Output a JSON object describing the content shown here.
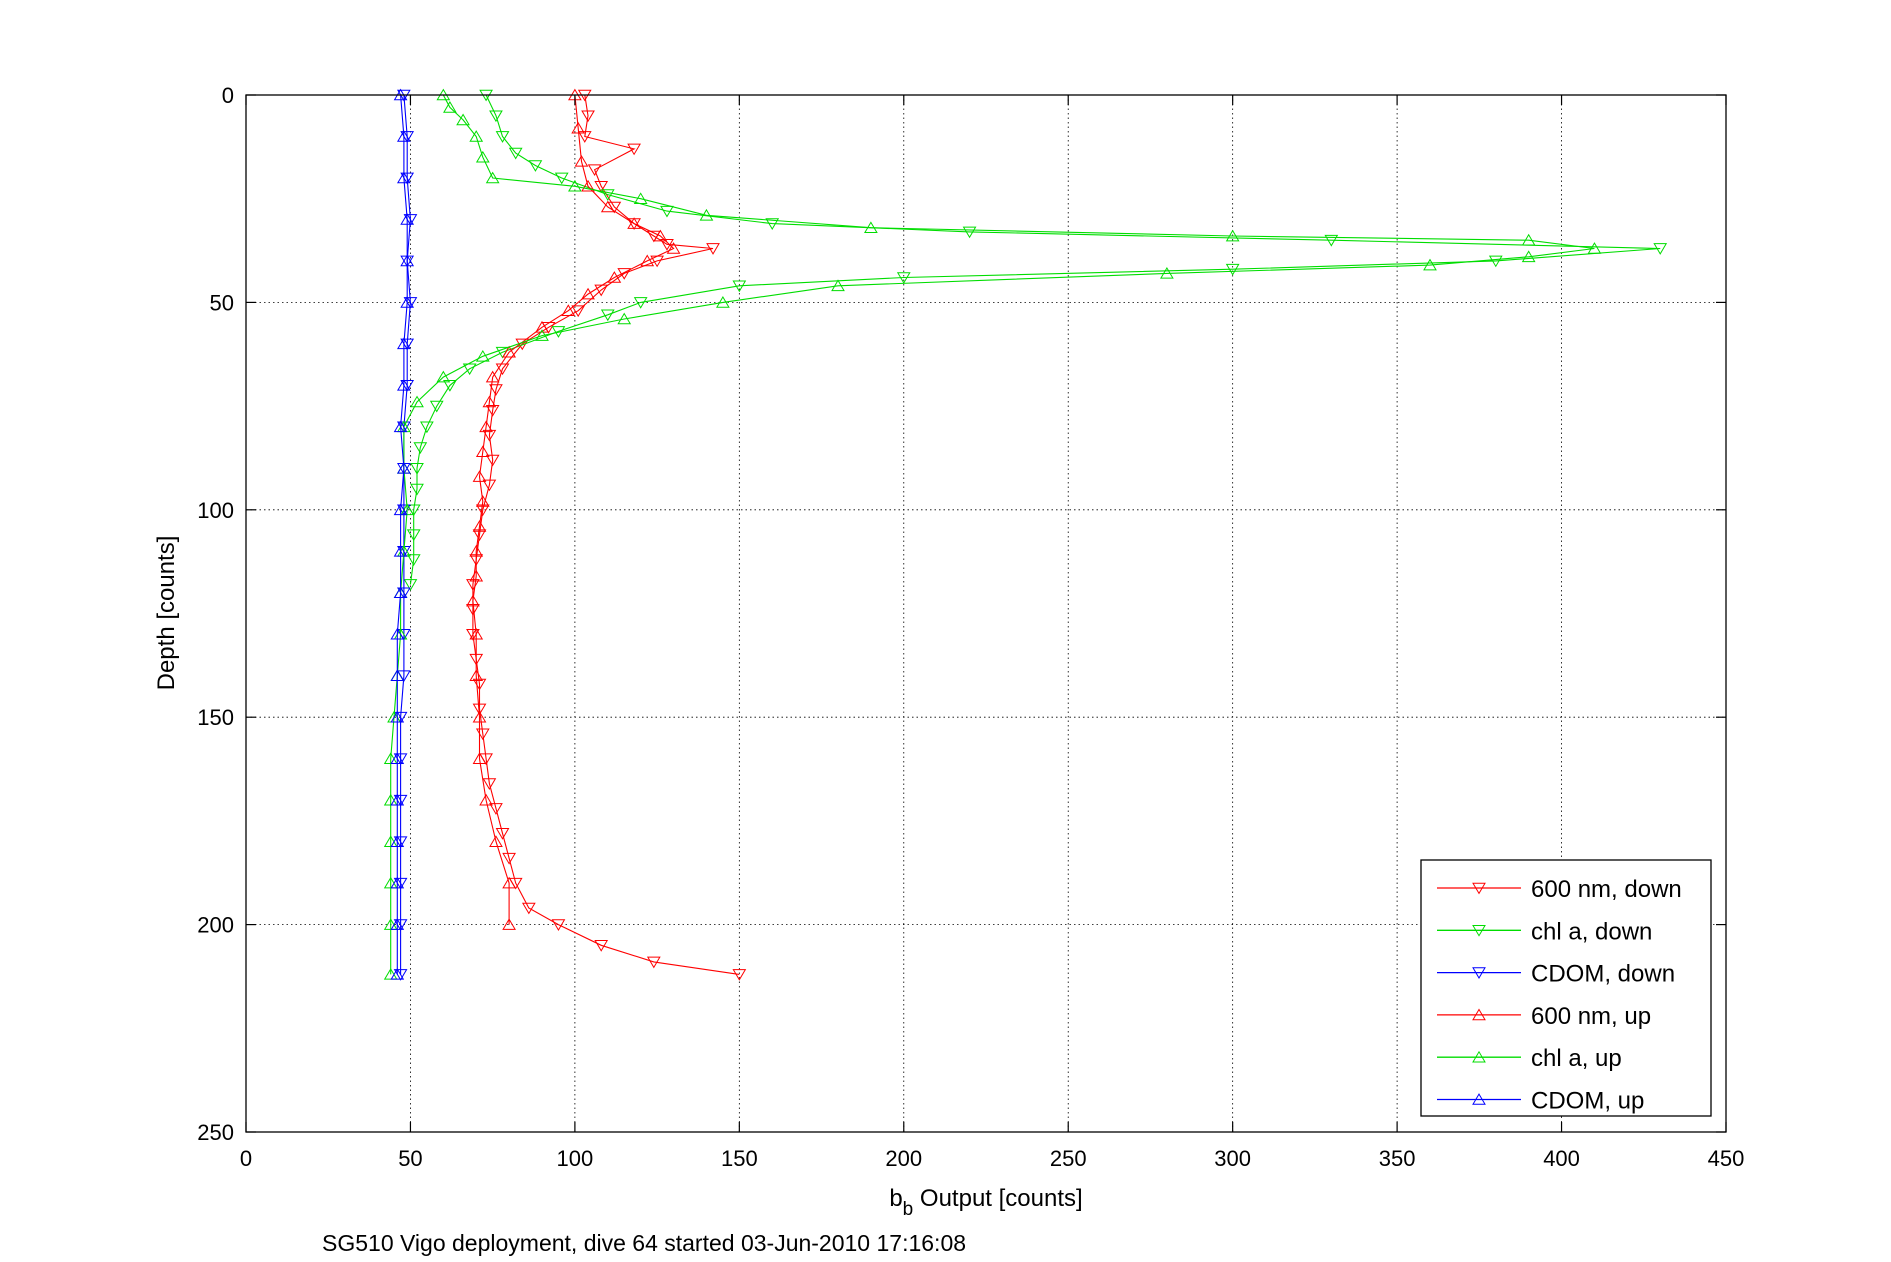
{
  "chart_data": {
    "type": "line",
    "title": "",
    "xlabel_main": "b",
    "xlabel_sub": "b",
    "xlabel_rest": " Output [counts]",
    "ylabel": "Depth [counts]",
    "caption": "SG510 Vigo deployment, dive 64 started 03-Jun-2010 17:16:08",
    "xlim": [
      0,
      450
    ],
    "ylim": [
      0,
      250
    ],
    "y_reversed": true,
    "grid": true,
    "legend_position": "bottom-right",
    "x_ticks": [
      "0",
      "50",
      "100",
      "150",
      "200",
      "250",
      "300",
      "350",
      "400",
      "450"
    ],
    "y_ticks": [
      "0",
      "50",
      "100",
      "150",
      "200",
      "250"
    ],
    "series": [
      {
        "name": "600 nm, down",
        "color": "#ff0000",
        "marker": "triangle-down",
        "points": [
          [
            103,
            0
          ],
          [
            104,
            5
          ],
          [
            103,
            10
          ],
          [
            118,
            13
          ],
          [
            106,
            18
          ],
          [
            108,
            22
          ],
          [
            112,
            27
          ],
          [
            118,
            31
          ],
          [
            124,
            34
          ],
          [
            128,
            36
          ],
          [
            142,
            37
          ],
          [
            125,
            40
          ],
          [
            115,
            43
          ],
          [
            108,
            47
          ],
          [
            101,
            52
          ],
          [
            92,
            56
          ],
          [
            84,
            60
          ],
          [
            78,
            66
          ],
          [
            76,
            71
          ],
          [
            75,
            76
          ],
          [
            74,
            82
          ],
          [
            75,
            88
          ],
          [
            74,
            94
          ],
          [
            72,
            100
          ],
          [
            71,
            106
          ],
          [
            70,
            112
          ],
          [
            69,
            118
          ],
          [
            69,
            124
          ],
          [
            69,
            130
          ],
          [
            70,
            136
          ],
          [
            71,
            142
          ],
          [
            71,
            148
          ],
          [
            72,
            154
          ],
          [
            73,
            160
          ],
          [
            74,
            166
          ],
          [
            76,
            172
          ],
          [
            78,
            178
          ],
          [
            80,
            184
          ],
          [
            82,
            190
          ],
          [
            86,
            196
          ],
          [
            95,
            200
          ],
          [
            108,
            205
          ],
          [
            124,
            209
          ],
          [
            150,
            212
          ]
        ]
      },
      {
        "name": "chl a, down",
        "color": "#00dd00",
        "marker": "triangle-down",
        "points": [
          [
            73,
            0
          ],
          [
            76,
            5
          ],
          [
            78,
            10
          ],
          [
            82,
            14
          ],
          [
            88,
            17
          ],
          [
            96,
            20
          ],
          [
            110,
            24
          ],
          [
            128,
            28
          ],
          [
            160,
            31
          ],
          [
            220,
            33
          ],
          [
            330,
            35
          ],
          [
            430,
            37
          ],
          [
            380,
            40
          ],
          [
            300,
            42
          ],
          [
            200,
            44
          ],
          [
            150,
            46
          ],
          [
            120,
            50
          ],
          [
            110,
            53
          ],
          [
            95,
            57
          ],
          [
            78,
            62
          ],
          [
            68,
            66
          ],
          [
            62,
            70
          ],
          [
            58,
            75
          ],
          [
            55,
            80
          ],
          [
            53,
            85
          ],
          [
            52,
            90
          ],
          [
            52,
            95
          ],
          [
            51,
            100
          ],
          [
            51,
            106
          ],
          [
            51,
            112
          ],
          [
            50,
            118
          ]
        ]
      },
      {
        "name": "CDOM, down",
        "color": "#0000ff",
        "marker": "triangle-down",
        "points": [
          [
            48,
            0
          ],
          [
            49,
            10
          ],
          [
            49,
            20
          ],
          [
            50,
            30
          ],
          [
            49,
            40
          ],
          [
            50,
            50
          ],
          [
            49,
            60
          ],
          [
            49,
            70
          ],
          [
            48,
            80
          ],
          [
            48,
            90
          ],
          [
            48,
            100
          ],
          [
            48,
            110
          ],
          [
            48,
            120
          ],
          [
            48,
            130
          ],
          [
            48,
            140
          ],
          [
            47,
            150
          ],
          [
            47,
            160
          ],
          [
            47,
            170
          ],
          [
            47,
            180
          ],
          [
            47,
            190
          ],
          [
            47,
            200
          ],
          [
            47,
            212
          ]
        ]
      },
      {
        "name": "600 nm, up",
        "color": "#ff0000",
        "marker": "triangle-up",
        "points": [
          [
            100,
            0
          ],
          [
            101,
            8
          ],
          [
            102,
            16
          ],
          [
            104,
            22
          ],
          [
            110,
            27
          ],
          [
            118,
            31
          ],
          [
            126,
            34
          ],
          [
            130,
            37
          ],
          [
            122,
            40
          ],
          [
            112,
            44
          ],
          [
            104,
            48
          ],
          [
            98,
            52
          ],
          [
            90,
            56
          ],
          [
            80,
            62
          ],
          [
            75,
            68
          ],
          [
            74,
            74
          ],
          [
            73,
            80
          ],
          [
            72,
            86
          ],
          [
            71,
            92
          ],
          [
            72,
            98
          ],
          [
            71,
            104
          ],
          [
            70,
            110
          ],
          [
            70,
            116
          ],
          [
            69,
            122
          ],
          [
            70,
            130
          ],
          [
            70,
            140
          ],
          [
            71,
            150
          ],
          [
            71,
            160
          ],
          [
            73,
            170
          ],
          [
            76,
            180
          ],
          [
            80,
            190
          ],
          [
            80,
            200
          ]
        ]
      },
      {
        "name": "chl a, up",
        "color": "#00dd00",
        "marker": "triangle-up",
        "points": [
          [
            60,
            0
          ],
          [
            62,
            3
          ],
          [
            66,
            6
          ],
          [
            70,
            10
          ],
          [
            72,
            15
          ],
          [
            75,
            20
          ],
          [
            100,
            22
          ],
          [
            120,
            25
          ],
          [
            140,
            29
          ],
          [
            190,
            32
          ],
          [
            300,
            34
          ],
          [
            390,
            35
          ],
          [
            410,
            37
          ],
          [
            390,
            39
          ],
          [
            360,
            41
          ],
          [
            280,
            43
          ],
          [
            180,
            46
          ],
          [
            145,
            50
          ],
          [
            115,
            54
          ],
          [
            90,
            58
          ],
          [
            72,
            63
          ],
          [
            60,
            68
          ],
          [
            52,
            74
          ],
          [
            48,
            80
          ],
          [
            48,
            90
          ],
          [
            49,
            100
          ],
          [
            48,
            110
          ],
          [
            47,
            120
          ],
          [
            47,
            130
          ],
          [
            46,
            140
          ],
          [
            45,
            150
          ],
          [
            44,
            160
          ],
          [
            44,
            170
          ],
          [
            44,
            180
          ],
          [
            44,
            190
          ],
          [
            44,
            200
          ],
          [
            44,
            212
          ]
        ]
      },
      {
        "name": "CDOM, up",
        "color": "#0000ff",
        "marker": "triangle-up",
        "points": [
          [
            47,
            0
          ],
          [
            48,
            10
          ],
          [
            48,
            20
          ],
          [
            49,
            30
          ],
          [
            49,
            40
          ],
          [
            49,
            50
          ],
          [
            48,
            60
          ],
          [
            48,
            70
          ],
          [
            47,
            80
          ],
          [
            48,
            90
          ],
          [
            47,
            100
          ],
          [
            47,
            110
          ],
          [
            47,
            120
          ],
          [
            46,
            130
          ],
          [
            46,
            140
          ],
          [
            46,
            150
          ],
          [
            46,
            160
          ],
          [
            46,
            170
          ],
          [
            46,
            180
          ],
          [
            46,
            190
          ],
          [
            46,
            200
          ],
          [
            46,
            212
          ]
        ]
      }
    ]
  }
}
